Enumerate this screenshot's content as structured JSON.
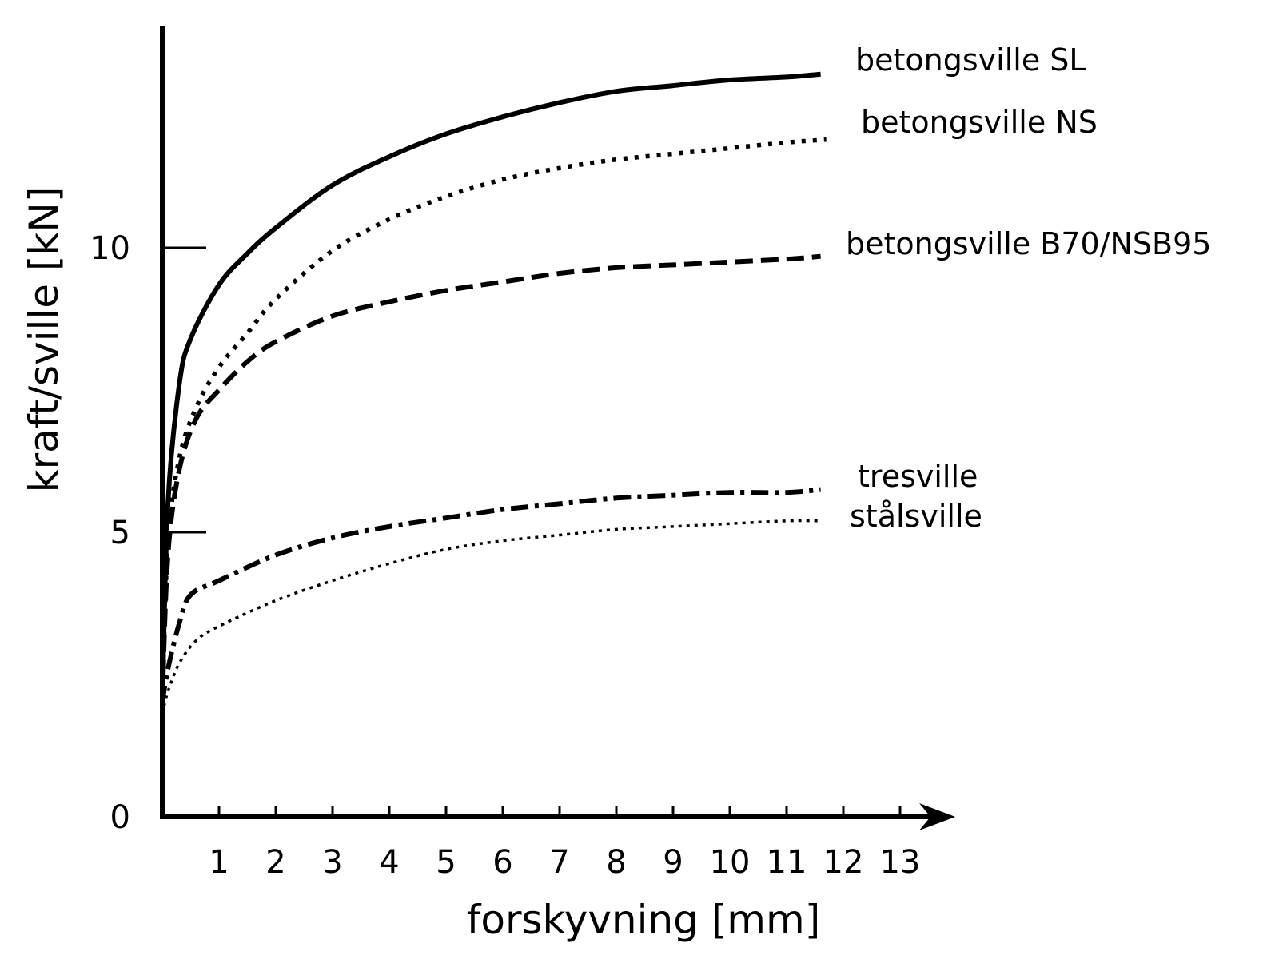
{
  "chart_data": {
    "type": "line",
    "title": "",
    "xlabel": "forskyvning [mm]",
    "ylabel": "kraft/sville [kN]",
    "xlim": [
      0,
      13.5
    ],
    "ylim": [
      0,
      14
    ],
    "x_ticks": [
      1,
      2,
      3,
      4,
      5,
      6,
      7,
      8,
      9,
      10,
      11,
      12,
      13
    ],
    "y_ticks": [
      0,
      5,
      10
    ],
    "grid": false,
    "legend": "inline-right",
    "series": [
      {
        "name": "betongsville SL",
        "style": "solid",
        "x": [
          0,
          0.1,
          0.3,
          0.5,
          1,
          1.5,
          2,
          3,
          4,
          5,
          6,
          7,
          8,
          9,
          10,
          11,
          11.6
        ],
        "y": [
          2,
          5.5,
          7.6,
          8.4,
          9.35,
          9.9,
          10.35,
          11.1,
          11.6,
          12.0,
          12.3,
          12.55,
          12.75,
          12.85,
          12.95,
          13.0,
          13.05
        ]
      },
      {
        "name": "betongsville NS",
        "style": "dotted",
        "x": [
          0,
          0.1,
          0.3,
          0.6,
          1,
          1.5,
          2,
          3,
          4,
          5,
          6,
          7,
          8,
          9,
          10,
          11,
          11.7
        ],
        "y": [
          2,
          4.8,
          6.3,
          7.2,
          7.9,
          8.5,
          9.1,
          9.95,
          10.5,
          10.9,
          11.2,
          11.4,
          11.55,
          11.65,
          11.75,
          11.85,
          11.9
        ]
      },
      {
        "name": "betongsville B70/NSB95",
        "style": "dashed",
        "x": [
          0,
          0.1,
          0.3,
          0.6,
          1,
          1.5,
          2,
          3,
          4,
          5,
          6,
          7,
          8,
          9,
          10,
          11,
          11.6
        ],
        "y": [
          2,
          4.6,
          6.1,
          7.0,
          7.5,
          8.0,
          8.35,
          8.8,
          9.05,
          9.25,
          9.4,
          9.55,
          9.65,
          9.7,
          9.75,
          9.8,
          9.85
        ]
      },
      {
        "name": "tresville",
        "style": "dash-dot",
        "x": [
          0,
          0.1,
          0.3,
          0.5,
          1,
          2,
          3,
          4,
          5,
          6,
          7,
          8,
          9,
          10,
          11,
          11.6
        ],
        "y": [
          2,
          2.6,
          3.4,
          3.9,
          4.15,
          4.6,
          4.9,
          5.1,
          5.25,
          5.4,
          5.5,
          5.6,
          5.65,
          5.7,
          5.7,
          5.75
        ]
      },
      {
        "name": "stålsville",
        "style": "fine-dotted",
        "x": [
          0,
          0.1,
          0.3,
          0.6,
          1,
          2,
          3,
          4,
          5,
          6,
          7,
          8,
          9,
          10,
          11,
          11.6
        ],
        "y": [
          1.8,
          2.2,
          2.7,
          3.1,
          3.35,
          3.8,
          4.15,
          4.45,
          4.7,
          4.85,
          4.95,
          5.05,
          5.1,
          5.15,
          5.2,
          5.2
        ]
      }
    ]
  }
}
